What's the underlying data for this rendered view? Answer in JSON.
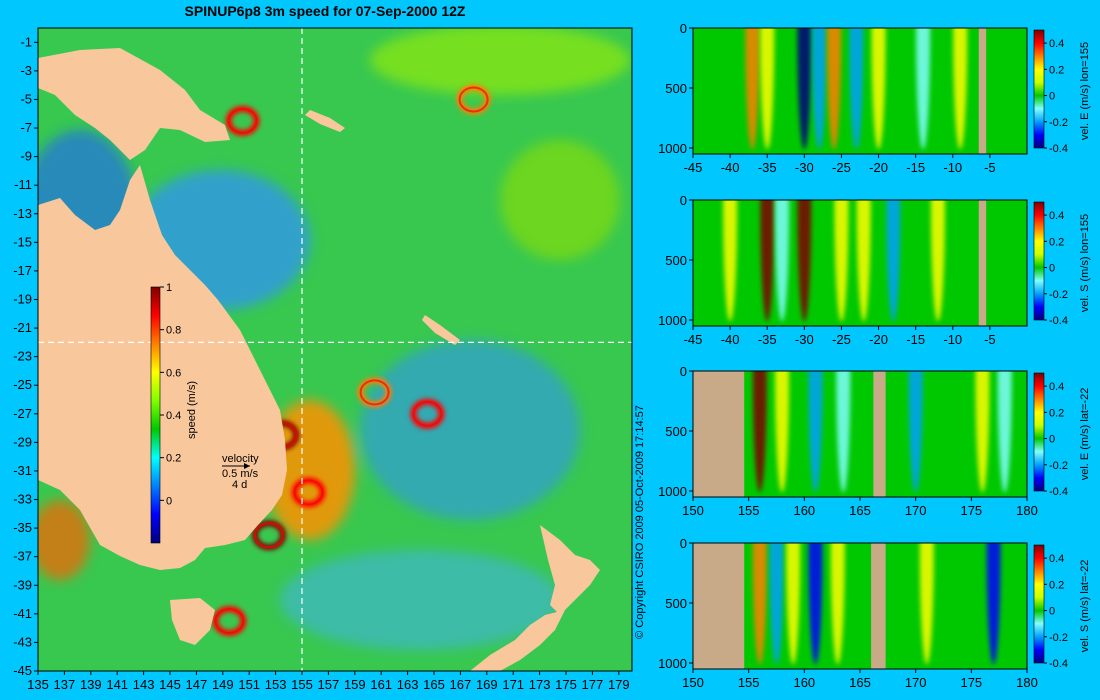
{
  "title": "SPINUP6p8 3m speed for 07-Sep-2000 12Z",
  "copyright": "© Copyright CSIRO 2009   05-Oct-2009 17:14:57",
  "colors": {
    "background": "#00c8ff",
    "land": "#f8c89c",
    "bathy": "#c8aa88",
    "speed_scale": [
      "#00007f",
      "#0000ff",
      "#0080ff",
      "#00ffff",
      "#00c800",
      "#80ff00",
      "#ffff00",
      "#ff8000",
      "#ff0000",
      "#7f0000"
    ],
    "velocity_scale": [
      "#00007f",
      "#0000ff",
      "#00a0ff",
      "#80ffff",
      "#00c800",
      "#c8ff00",
      "#ffff00",
      "#ff8000",
      "#ff0000",
      "#7f0000"
    ]
  },
  "chart_data": [
    {
      "type": "heatmap",
      "name": "speed map",
      "title": "SPINUP6p8 3m speed for 07-Sep-2000 12Z",
      "xlabel": "",
      "ylabel": "",
      "xlim": [
        135,
        180
      ],
      "ylim": [
        -45,
        0
      ],
      "x_ticks": [
        "135",
        "137",
        "139",
        "141",
        "143",
        "145",
        "147",
        "149",
        "151",
        "153",
        "155",
        "157",
        "159",
        "161",
        "163",
        "165",
        "167",
        "169",
        "171",
        "173",
        "175",
        "177",
        "179"
      ],
      "y_ticks": [
        "-1",
        "-3",
        "-5",
        "-7",
        "-9",
        "-11",
        "-13",
        "-15",
        "-17",
        "-19",
        "-21",
        "-23",
        "-25",
        "-27",
        "-29",
        "-31",
        "-33",
        "-35",
        "-37",
        "-39",
        "-41",
        "-43",
        "-45"
      ],
      "section_lines": {
        "lon": 155,
        "lat": -22
      },
      "colorbar": {
        "label": "speed (m/s)",
        "range": [
          -0.2,
          1
        ],
        "ticks": [
          "1",
          "0.8",
          "0.6",
          "0.4",
          "0.2",
          "0"
        ]
      },
      "velocity_key": {
        "title": "velocity",
        "speed": "0.5 m/s",
        "scale": "4 d"
      },
      "eddies": [
        {
          "lon": 150.5,
          "lat": -6.5,
          "speed": 0.9
        },
        {
          "lon": 153.5,
          "lat": -28.5,
          "speed": 1.0
        },
        {
          "lon": 155.5,
          "lat": -32.5,
          "speed": 0.9
        },
        {
          "lon": 152.5,
          "lat": -35.5,
          "speed": 0.95
        },
        {
          "lon": 164.5,
          "lat": -27.0,
          "speed": 0.9
        },
        {
          "lon": 149.5,
          "lat": -41.5,
          "speed": 0.8
        },
        {
          "lon": 168.0,
          "lat": -5.0,
          "speed": 0.7
        },
        {
          "lon": 160.5,
          "lat": -25.5,
          "speed": 0.7
        }
      ]
    },
    {
      "type": "heatmap",
      "name": "section 1",
      "xlabel": "",
      "ylabel": "vel. E (m/s) lon=155",
      "xlim": [
        -45,
        0
      ],
      "ylim": [
        1050,
        0
      ],
      "x_ticks": [
        "-45",
        "-40",
        "-35",
        "-30",
        "-25",
        "-20",
        "-15",
        "-10",
        "-5"
      ],
      "y_ticks": [
        "0",
        "500",
        "1000"
      ],
      "colorbar": {
        "range": [
          -0.4,
          0.5
        ],
        "ticks": [
          "0.4",
          "0.2",
          "0",
          "-0.2",
          "-0.4"
        ]
      },
      "features": [
        {
          "x": -37,
          "v": 0.25
        },
        {
          "x": -35,
          "v": 0.2
        },
        {
          "x": -30,
          "v": -0.4
        },
        {
          "x": -28,
          "v": -0.2
        },
        {
          "x": -26,
          "v": 0.3
        },
        {
          "x": -23,
          "v": -0.2
        },
        {
          "x": -20,
          "v": 0.2
        },
        {
          "x": -14,
          "v": -0.15
        },
        {
          "x": -9,
          "v": 0.15
        }
      ],
      "mask": [
        [
          -6.5,
          -5.5
        ]
      ]
    },
    {
      "type": "heatmap",
      "name": "section 2",
      "xlabel": "",
      "ylabel": "vel. S (m/s) lon=155",
      "xlim": [
        -45,
        0
      ],
      "ylim": [
        1050,
        0
      ],
      "x_ticks": [
        "-45",
        "-40",
        "-35",
        "-30",
        "-25",
        "-20",
        "-15",
        "-10",
        "-5"
      ],
      "y_ticks": [
        "0",
        "500",
        "1000"
      ],
      "colorbar": {
        "range": [
          -0.4,
          0.5
        ],
        "ticks": [
          "0.4",
          "0.2",
          "0",
          "-0.2",
          "-0.4"
        ]
      },
      "features": [
        {
          "x": -40,
          "v": 0.2
        },
        {
          "x": -35,
          "v": 0.45
        },
        {
          "x": -33,
          "v": -0.15
        },
        {
          "x": -30,
          "v": 0.5
        },
        {
          "x": -25,
          "v": 0.2
        },
        {
          "x": -22,
          "v": 0.15
        },
        {
          "x": -18,
          "v": -0.2
        },
        {
          "x": -12,
          "v": 0.15
        }
      ],
      "mask": [
        [
          -6.5,
          -5.5
        ]
      ]
    },
    {
      "type": "heatmap",
      "name": "section 3",
      "xlabel": "",
      "ylabel": "vel. E (m/s) lat=-22",
      "xlim": [
        150,
        180
      ],
      "ylim": [
        1050,
        0
      ],
      "x_ticks": [
        "150",
        "155",
        "160",
        "165",
        "170",
        "175",
        "180"
      ],
      "y_ticks": [
        "0",
        "500",
        "1000"
      ],
      "colorbar": {
        "range": [
          -0.4,
          0.5
        ],
        "ticks": [
          "0.4",
          "0.2",
          "0",
          "-0.2",
          "-0.4"
        ]
      },
      "features": [
        {
          "x": 156,
          "v": 0.45
        },
        {
          "x": 158,
          "v": 0.15
        },
        {
          "x": 161,
          "v": -0.2
        },
        {
          "x": 163.5,
          "v": -0.15
        },
        {
          "x": 170,
          "v": -0.2
        },
        {
          "x": 176,
          "v": 0.2
        },
        {
          "x": 178,
          "v": -0.15
        }
      ],
      "mask": [
        [
          150,
          154.6
        ],
        [
          166.2,
          167.3
        ]
      ]
    },
    {
      "type": "heatmap",
      "name": "section 4",
      "xlabel": "",
      "ylabel": "vel. S (m/s) lat=-22",
      "xlim": [
        150,
        180
      ],
      "ylim": [
        1050,
        0
      ],
      "x_ticks": [
        "150",
        "155",
        "160",
        "165",
        "170",
        "175",
        "180"
      ],
      "y_ticks": [
        "0",
        "500",
        "1000"
      ],
      "colorbar": {
        "range": [
          -0.4,
          0.5
        ],
        "ticks": [
          "0.4",
          "0.2",
          "0",
          "-0.2",
          "-0.4"
        ]
      },
      "features": [
        {
          "x": 156,
          "v": 0.35
        },
        {
          "x": 157.5,
          "v": -0.2
        },
        {
          "x": 159,
          "v": 0.2
        },
        {
          "x": 161,
          "v": -0.3
        },
        {
          "x": 163,
          "v": 0.2
        },
        {
          "x": 171,
          "v": 0.15
        },
        {
          "x": 177,
          "v": -0.3
        }
      ],
      "mask": [
        [
          150,
          154.6
        ],
        [
          166,
          167.3
        ]
      ]
    }
  ]
}
